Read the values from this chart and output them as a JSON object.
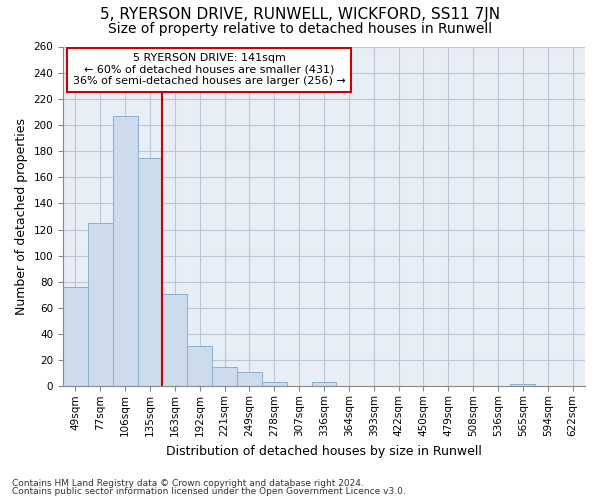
{
  "title": "5, RYERSON DRIVE, RUNWELL, WICKFORD, SS11 7JN",
  "subtitle": "Size of property relative to detached houses in Runwell",
  "xlabel": "Distribution of detached houses by size in Runwell",
  "ylabel": "Number of detached properties",
  "categories": [
    "49sqm",
    "77sqm",
    "106sqm",
    "135sqm",
    "163sqm",
    "192sqm",
    "221sqm",
    "249sqm",
    "278sqm",
    "307sqm",
    "336sqm",
    "364sqm",
    "393sqm",
    "422sqm",
    "450sqm",
    "479sqm",
    "508sqm",
    "536sqm",
    "565sqm",
    "594sqm",
    "622sqm"
  ],
  "values": [
    76,
    125,
    207,
    175,
    71,
    31,
    15,
    11,
    3,
    0,
    3,
    0,
    0,
    0,
    0,
    0,
    0,
    0,
    2,
    0,
    0
  ],
  "bar_color": "#ccdcec",
  "bar_edge_color": "#8ab0cc",
  "vline_x": 3.5,
  "vline_color": "#cc0000",
  "annotation_line1": "5 RYERSON DRIVE: 141sqm",
  "annotation_line2": "← 60% of detached houses are smaller (431)",
  "annotation_line3": "36% of semi-detached houses are larger (256) →",
  "annotation_box_color": "white",
  "annotation_box_edge": "#cc0000",
  "ylim": [
    0,
    260
  ],
  "yticks": [
    0,
    20,
    40,
    60,
    80,
    100,
    120,
    140,
    160,
    180,
    200,
    220,
    240,
    260
  ],
  "background_color": "#e8eef5",
  "grid_color": "#b8c8d8",
  "footer_line1": "Contains HM Land Registry data © Crown copyright and database right 2024.",
  "footer_line2": "Contains public sector information licensed under the Open Government Licence v3.0.",
  "title_fontsize": 11,
  "subtitle_fontsize": 10,
  "xlabel_fontsize": 9,
  "ylabel_fontsize": 9,
  "tick_fontsize": 7.5,
  "footer_fontsize": 6.5
}
